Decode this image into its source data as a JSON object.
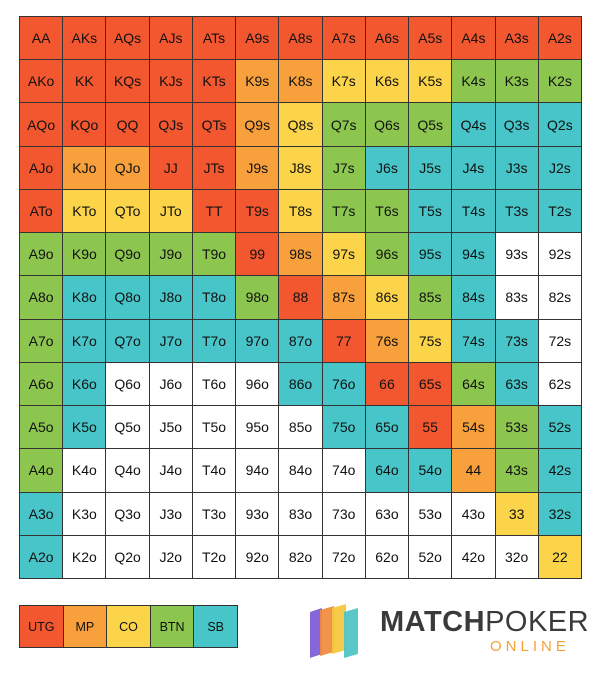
{
  "colors": {
    "UTG": "#f2572f",
    "MP": "#f8a03b",
    "CO": "#fcd44a",
    "BTN": "#8cc64f",
    "SB": "#47c5c8",
    "none": "#ffffff"
  },
  "grid": [
    [
      [
        "AA",
        "UTG"
      ],
      [
        "AKs",
        "UTG"
      ],
      [
        "AQs",
        "UTG"
      ],
      [
        "AJs",
        "UTG"
      ],
      [
        "ATs",
        "UTG"
      ],
      [
        "A9s",
        "UTG"
      ],
      [
        "A8s",
        "UTG"
      ],
      [
        "A7s",
        "UTG"
      ],
      [
        "A6s",
        "UTG"
      ],
      [
        "A5s",
        "UTG"
      ],
      [
        "A4s",
        "UTG"
      ],
      [
        "A3s",
        "UTG"
      ],
      [
        "A2s",
        "UTG"
      ]
    ],
    [
      [
        "AKo",
        "UTG"
      ],
      [
        "KK",
        "UTG"
      ],
      [
        "KQs",
        "UTG"
      ],
      [
        "KJs",
        "UTG"
      ],
      [
        "KTs",
        "UTG"
      ],
      [
        "K9s",
        "MP"
      ],
      [
        "K8s",
        "MP"
      ],
      [
        "K7s",
        "CO"
      ],
      [
        "K6s",
        "CO"
      ],
      [
        "K5s",
        "CO"
      ],
      [
        "K4s",
        "BTN"
      ],
      [
        "K3s",
        "BTN"
      ],
      [
        "K2s",
        "BTN"
      ]
    ],
    [
      [
        "AQo",
        "UTG"
      ],
      [
        "KQo",
        "UTG"
      ],
      [
        "QQ",
        "UTG"
      ],
      [
        "QJs",
        "UTG"
      ],
      [
        "QTs",
        "UTG"
      ],
      [
        "Q9s",
        "MP"
      ],
      [
        "Q8s",
        "CO"
      ],
      [
        "Q7s",
        "BTN"
      ],
      [
        "Q6s",
        "BTN"
      ],
      [
        "Q5s",
        "BTN"
      ],
      [
        "Q4s",
        "SB"
      ],
      [
        "Q3s",
        "SB"
      ],
      [
        "Q2s",
        "SB"
      ]
    ],
    [
      [
        "AJo",
        "UTG"
      ],
      [
        "KJo",
        "MP"
      ],
      [
        "QJo",
        "MP"
      ],
      [
        "JJ",
        "UTG"
      ],
      [
        "JTs",
        "UTG"
      ],
      [
        "J9s",
        "MP"
      ],
      [
        "J8s",
        "CO"
      ],
      [
        "J7s",
        "BTN"
      ],
      [
        "J6s",
        "SB"
      ],
      [
        "J5s",
        "SB"
      ],
      [
        "J4s",
        "SB"
      ],
      [
        "J3s",
        "SB"
      ],
      [
        "J2s",
        "SB"
      ]
    ],
    [
      [
        "ATo",
        "UTG"
      ],
      [
        "KTo",
        "CO"
      ],
      [
        "QTo",
        "CO"
      ],
      [
        "JTo",
        "CO"
      ],
      [
        "TT",
        "UTG"
      ],
      [
        "T9s",
        "UTG"
      ],
      [
        "T8s",
        "CO"
      ],
      [
        "T7s",
        "BTN"
      ],
      [
        "T6s",
        "BTN"
      ],
      [
        "T5s",
        "SB"
      ],
      [
        "T4s",
        "SB"
      ],
      [
        "T3s",
        "SB"
      ],
      [
        "T2s",
        "SB"
      ]
    ],
    [
      [
        "A9o",
        "BTN"
      ],
      [
        "K9o",
        "BTN"
      ],
      [
        "Q9o",
        "BTN"
      ],
      [
        "J9o",
        "BTN"
      ],
      [
        "T9o",
        "BTN"
      ],
      [
        "99",
        "UTG"
      ],
      [
        "98s",
        "MP"
      ],
      [
        "97s",
        "CO"
      ],
      [
        "96s",
        "BTN"
      ],
      [
        "95s",
        "SB"
      ],
      [
        "94s",
        "SB"
      ],
      [
        "93s",
        "none"
      ],
      [
        "92s",
        "none"
      ]
    ],
    [
      [
        "A8o",
        "BTN"
      ],
      [
        "K8o",
        "SB"
      ],
      [
        "Q8o",
        "SB"
      ],
      [
        "J8o",
        "SB"
      ],
      [
        "T8o",
        "SB"
      ],
      [
        "98o",
        "BTN"
      ],
      [
        "88",
        "UTG"
      ],
      [
        "87s",
        "MP"
      ],
      [
        "86s",
        "CO"
      ],
      [
        "85s",
        "BTN"
      ],
      [
        "84s",
        "SB"
      ],
      [
        "83s",
        "none"
      ],
      [
        "82s",
        "none"
      ]
    ],
    [
      [
        "A7o",
        "BTN"
      ],
      [
        "K7o",
        "SB"
      ],
      [
        "Q7o",
        "SB"
      ],
      [
        "J7o",
        "SB"
      ],
      [
        "T7o",
        "SB"
      ],
      [
        "97o",
        "SB"
      ],
      [
        "87o",
        "SB"
      ],
      [
        "77",
        "UTG"
      ],
      [
        "76s",
        "MP"
      ],
      [
        "75s",
        "CO"
      ],
      [
        "74s",
        "SB"
      ],
      [
        "73s",
        "SB"
      ],
      [
        "72s",
        "none"
      ]
    ],
    [
      [
        "A6o",
        "BTN"
      ],
      [
        "K6o",
        "SB"
      ],
      [
        "Q6o",
        "none"
      ],
      [
        "J6o",
        "none"
      ],
      [
        "T6o",
        "none"
      ],
      [
        "96o",
        "none"
      ],
      [
        "86o",
        "SB"
      ],
      [
        "76o",
        "SB"
      ],
      [
        "66",
        "UTG"
      ],
      [
        "65s",
        "UTG"
      ],
      [
        "64s",
        "BTN"
      ],
      [
        "63s",
        "SB"
      ],
      [
        "62s",
        "none"
      ]
    ],
    [
      [
        "A5o",
        "BTN"
      ],
      [
        "K5o",
        "SB"
      ],
      [
        "Q5o",
        "none"
      ],
      [
        "J5o",
        "none"
      ],
      [
        "T5o",
        "none"
      ],
      [
        "95o",
        "none"
      ],
      [
        "85o",
        "none"
      ],
      [
        "75o",
        "SB"
      ],
      [
        "65o",
        "SB"
      ],
      [
        "55",
        "UTG"
      ],
      [
        "54s",
        "MP"
      ],
      [
        "53s",
        "BTN"
      ],
      [
        "52s",
        "SB"
      ]
    ],
    [
      [
        "A4o",
        "BTN"
      ],
      [
        "K4o",
        "none"
      ],
      [
        "Q4o",
        "none"
      ],
      [
        "J4o",
        "none"
      ],
      [
        "T4o",
        "none"
      ],
      [
        "94o",
        "none"
      ],
      [
        "84o",
        "none"
      ],
      [
        "74o",
        "none"
      ],
      [
        "64o",
        "SB"
      ],
      [
        "54o",
        "SB"
      ],
      [
        "44",
        "MP"
      ],
      [
        "43s",
        "BTN"
      ],
      [
        "42s",
        "SB"
      ]
    ],
    [
      [
        "A3o",
        "SB"
      ],
      [
        "K3o",
        "none"
      ],
      [
        "Q3o",
        "none"
      ],
      [
        "J3o",
        "none"
      ],
      [
        "T3o",
        "none"
      ],
      [
        "93o",
        "none"
      ],
      [
        "83o",
        "none"
      ],
      [
        "73o",
        "none"
      ],
      [
        "63o",
        "none"
      ],
      [
        "53o",
        "none"
      ],
      [
        "43o",
        "none"
      ],
      [
        "33",
        "CO"
      ],
      [
        "32s",
        "SB"
      ]
    ],
    [
      [
        "A2o",
        "SB"
      ],
      [
        "K2o",
        "none"
      ],
      [
        "Q2o",
        "none"
      ],
      [
        "J2o",
        "none"
      ],
      [
        "T2o",
        "none"
      ],
      [
        "92o",
        "none"
      ],
      [
        "82o",
        "none"
      ],
      [
        "72o",
        "none"
      ],
      [
        "62o",
        "none"
      ],
      [
        "52o",
        "none"
      ],
      [
        "42o",
        "none"
      ],
      [
        "32o",
        "none"
      ],
      [
        "22",
        "CO"
      ]
    ]
  ],
  "legend": [
    {
      "label": "UTG",
      "key": "UTG"
    },
    {
      "label": "MP",
      "key": "MP"
    },
    {
      "label": "CO",
      "key": "CO"
    },
    {
      "label": "BTN",
      "key": "BTN"
    },
    {
      "label": "SB",
      "key": "SB"
    }
  ],
  "logo": {
    "word_bold": "MATCH",
    "word_light": "POKER",
    "sub": "ONLINE",
    "card_colors": [
      "#7b5ad6",
      "#f08a3c",
      "#f7c53a",
      "#4cc2c4"
    ]
  }
}
